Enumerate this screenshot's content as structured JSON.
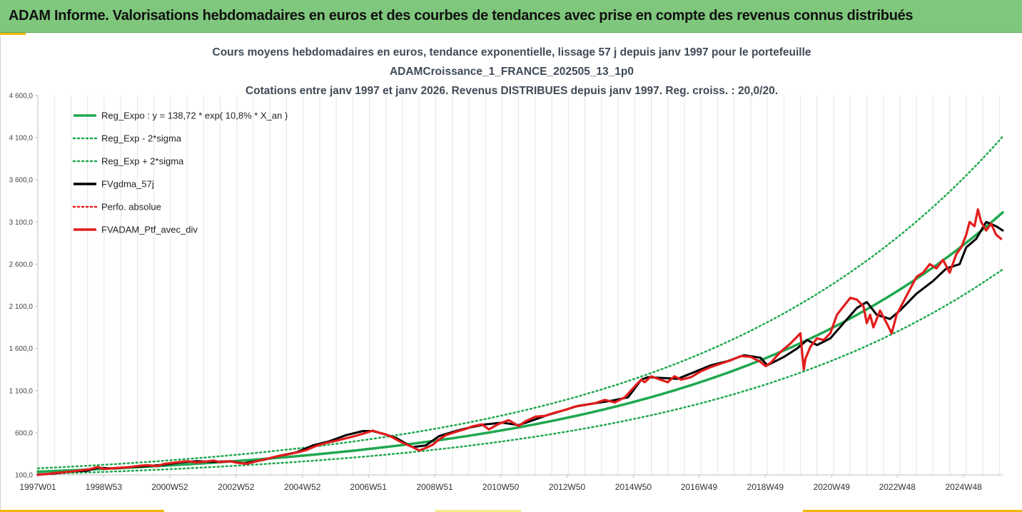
{
  "header": {
    "title": "ADAM Informe. Valorisations hebdomadaires en euros et des courbes de tendances avec prise en compte des revenus connus distribués"
  },
  "chart_data": {
    "type": "line",
    "title_lines": [
      "Cours moyens hebdomadaires  en euros, tendance exponentielle, lissage 57 j depuis janv 1997 pour le portefeuille",
      "ADAMCroissance_1_FRANCE_202505_13_1p0",
      "Cotations entre janv 1997 et janv 2026. Revenus DISTRIBUES depuis janv 1997. Reg. croiss. : 20,0/20."
    ],
    "xlabel": "",
    "ylabel": "",
    "ylim": [
      100,
      4600
    ],
    "xlim": [
      1997.0,
      2026.1
    ],
    "y_ticks": [
      100,
      600,
      1100,
      1600,
      2100,
      2600,
      3100,
      3600,
      4100,
      4600
    ],
    "y_tick_labels": [
      "100,0",
      "600,0",
      "1 100,0",
      "1 600,0",
      "2 100,0",
      "2 600,0",
      "3 100,0",
      "3 600,0",
      "4 100,0",
      "4 600,0"
    ],
    "x_ticks": [
      1997.0,
      1998.99,
      2000.98,
      2002.98,
      2004.98,
      2006.97,
      2008.97,
      2010.96,
      2012.96,
      2014.96,
      2016.94,
      2018.94,
      2020.94,
      2022.92,
      2024.92
    ],
    "x_tick_labels": [
      "1997W01",
      "1998W53",
      "2000W52",
      "2002W52",
      "2004W52",
      "2006W51",
      "2008W51",
      "2010W50",
      "2012W50",
      "2014W50",
      "2016W49",
      "2018W49",
      "2020W49",
      "2022W48",
      "2024W48"
    ],
    "grid": "vertical",
    "legend_position": "top-left",
    "regression": {
      "a": 138.72,
      "rate": 0.108,
      "band_low_factor": 0.79,
      "band_high_factor": 1.28
    },
    "series": [
      {
        "name": "Reg_Expo : y = 138,72 * exp( 10,8% *  X_an )",
        "color": "#1fa84f",
        "style": "solid",
        "kind": "reg"
      },
      {
        "name": "Reg_Exp - 2*sigma",
        "color": "#1fa84f",
        "style": "dotted",
        "kind": "low"
      },
      {
        "name": "Reg_Exp + 2*sigma",
        "color": "#1fa84f",
        "style": "dotted",
        "kind": "high"
      },
      {
        "name": "FVgdma_57j",
        "color": "#000000",
        "style": "solid",
        "kind": "data",
        "x": [
          1997.0,
          1997.5,
          1998.0,
          1998.5,
          1998.8,
          1999.3,
          1999.8,
          2000.3,
          2000.8,
          2001.3,
          2001.8,
          2002.3,
          2002.8,
          2003.2,
          2003.8,
          2004.3,
          2004.8,
          2005.3,
          2005.8,
          2006.3,
          2006.8,
          2007.1,
          2007.4,
          2007.8,
          2008.3,
          2008.7,
          2009.1,
          2009.6,
          2010.0,
          2010.5,
          2011.0,
          2011.5,
          2011.8,
          2012.3,
          2012.8,
          2013.3,
          2013.8,
          2014.3,
          2014.8,
          2015.2,
          2015.4,
          2015.8,
          2016.3,
          2016.8,
          2017.3,
          2017.8,
          2018.3,
          2018.8,
          2019.0,
          2019.5,
          2019.9,
          2020.2,
          2020.5,
          2020.9,
          2021.3,
          2021.7,
          2022.0,
          2022.3,
          2022.7,
          2023.0,
          2023.5,
          2024.0,
          2024.4,
          2024.8,
          2025.0,
          2025.3,
          2025.6,
          2025.9,
          2026.1
        ],
        "y": [
          107,
          116,
          140,
          150,
          185,
          176,
          192,
          205,
          220,
          248,
          262,
          254,
          262,
          238,
          278,
          328,
          368,
          450,
          500,
          572,
          620,
          620,
          590,
          540,
          430,
          450,
          560,
          620,
          660,
          700,
          720,
          690,
          730,
          800,
          860,
          920,
          950,
          980,
          1020,
          1230,
          1260,
          1250,
          1240,
          1320,
          1400,
          1450,
          1520,
          1490,
          1400,
          1500,
          1600,
          1700,
          1640,
          1720,
          1900,
          2080,
          2150,
          2000,
          1950,
          2050,
          2250,
          2400,
          2550,
          2600,
          2800,
          2900,
          3100,
          3050,
          3000
        ]
      },
      {
        "name": "Perfo. absolue",
        "color": "#e21c1c",
        "style": "dotted",
        "kind": "none"
      },
      {
        "name": "FVADAM_Ptf_avec_div",
        "color": "#e21c1c",
        "style": "solid",
        "kind": "data",
        "x": [
          1997.0,
          1997.3,
          1997.6,
          1998.0,
          1998.3,
          1998.6,
          1998.8,
          1999.0,
          1999.3,
          1999.6,
          1999.8,
          2000.1,
          2000.3,
          2000.6,
          2000.8,
          2001.2,
          2001.5,
          2001.8,
          2002.1,
          2002.3,
          2002.5,
          2002.8,
          2003.0,
          2003.3,
          2003.6,
          2003.9,
          2004.2,
          2004.5,
          2004.8,
          2005.1,
          2005.4,
          2005.7,
          2006.0,
          2006.3,
          2006.6,
          2006.9,
          2007.1,
          2007.3,
          2007.5,
          2007.7,
          2007.9,
          2008.1,
          2008.3,
          2008.5,
          2008.7,
          2008.9,
          2009.1,
          2009.3,
          2009.6,
          2009.9,
          2010.1,
          2010.4,
          2010.6,
          2010.9,
          2011.2,
          2011.5,
          2011.7,
          2012.0,
          2012.3,
          2012.6,
          2012.9,
          2013.2,
          2013.5,
          2013.8,
          2014.1,
          2014.4,
          2014.7,
          2015.0,
          2015.2,
          2015.3,
          2015.5,
          2015.7,
          2016.0,
          2016.2,
          2016.4,
          2016.7,
          2017.0,
          2017.3,
          2017.6,
          2017.9,
          2018.2,
          2018.5,
          2018.8,
          2018.95,
          2019.1,
          2019.4,
          2019.7,
          2020.0,
          2020.05,
          2020.1,
          2020.15,
          2020.3,
          2020.5,
          2020.7,
          2020.9,
          2021.1,
          2021.3,
          2021.5,
          2021.7,
          2021.9,
          2022.0,
          2022.1,
          2022.2,
          2022.4,
          2022.6,
          2022.75,
          2022.9,
          2023.1,
          2023.3,
          2023.5,
          2023.7,
          2023.9,
          2024.1,
          2024.3,
          2024.5,
          2024.7,
          2024.85,
          2025.0,
          2025.1,
          2025.25,
          2025.35,
          2025.45,
          2025.6,
          2025.75,
          2025.9,
          2026.05
        ],
        "y": [
          102,
          112,
          125,
          140,
          155,
          170,
          195,
          170,
          180,
          188,
          195,
          210,
          215,
          205,
          230,
          250,
          262,
          248,
          260,
          270,
          252,
          262,
          245,
          232,
          262,
          290,
          320,
          340,
          365,
          395,
          445,
          480,
          505,
          535,
          565,
          600,
          625,
          600,
          580,
          545,
          500,
          465,
          430,
          390,
          420,
          455,
          520,
          570,
          610,
          645,
          675,
          700,
          640,
          705,
          750,
          680,
          735,
          790,
          800,
          840,
          870,
          910,
          930,
          950,
          990,
          960,
          1020,
          1150,
          1230,
          1200,
          1270,
          1240,
          1200,
          1270,
          1230,
          1260,
          1330,
          1380,
          1420,
          1460,
          1510,
          1500,
          1440,
          1390,
          1430,
          1560,
          1660,
          1780,
          1550,
          1350,
          1480,
          1620,
          1720,
          1700,
          1780,
          2000,
          2100,
          2200,
          2180,
          2100,
          1900,
          2000,
          1850,
          2050,
          1900,
          1780,
          2000,
          2150,
          2300,
          2450,
          2500,
          2600,
          2550,
          2650,
          2500,
          2720,
          2800,
          2950,
          3100,
          3050,
          3250,
          3100,
          3000,
          3080,
          2950,
          2900
        ]
      }
    ]
  }
}
